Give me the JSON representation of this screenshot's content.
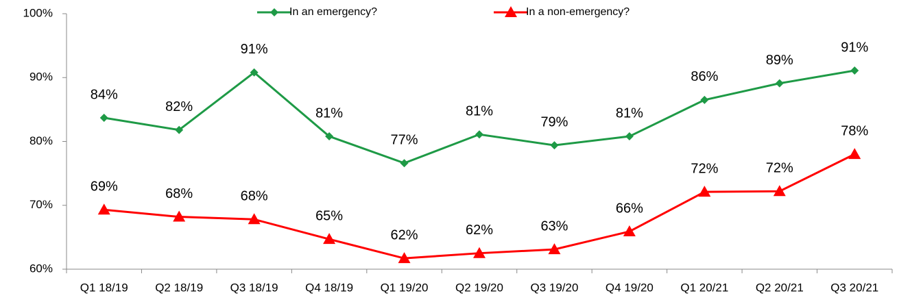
{
  "chart_data": {
    "type": "line",
    "categories": [
      "Q1 18/19",
      "Q2 18/19",
      "Q3 18/19",
      "Q4 18/19",
      "Q1 19/20",
      "Q2 19/20",
      "Q3 19/20",
      "Q4 19/20",
      "Q1 20/21",
      "Q2 20/21",
      "Q3 20/21"
    ],
    "series": [
      {
        "name": "In an emergency?",
        "color": "#1e9a46",
        "marker": "diamond",
        "values": [
          83.7,
          81.8,
          90.8,
          80.8,
          76.6,
          81.1,
          79.4,
          80.8,
          86.5,
          89.1,
          91.1
        ],
        "value_labels": [
          "84%",
          "82%",
          "91%",
          "81%",
          "77%",
          "81%",
          "79%",
          "81%",
          "86%",
          "89%",
          "91%"
        ]
      },
      {
        "name": "In a non-emergency?",
        "color": "#ff0000",
        "marker": "triangle",
        "values": [
          69.3,
          68.2,
          67.8,
          64.7,
          61.7,
          62.5,
          63.1,
          65.9,
          72.1,
          72.2,
          78.0
        ],
        "value_labels": [
          "69%",
          "68%",
          "68%",
          "65%",
          "62%",
          "62%",
          "63%",
          "66%",
          "72%",
          "72%",
          "78%"
        ]
      }
    ],
    "ylim": [
      60,
      100
    ],
    "yticks": [
      {
        "value": 60,
        "label": "60%"
      },
      {
        "value": 70,
        "label": "70%"
      },
      {
        "value": 80,
        "label": "80%"
      },
      {
        "value": 90,
        "label": "90%"
      },
      {
        "value": 100,
        "label": "100%"
      }
    ],
    "grid": false,
    "legend": "top"
  }
}
